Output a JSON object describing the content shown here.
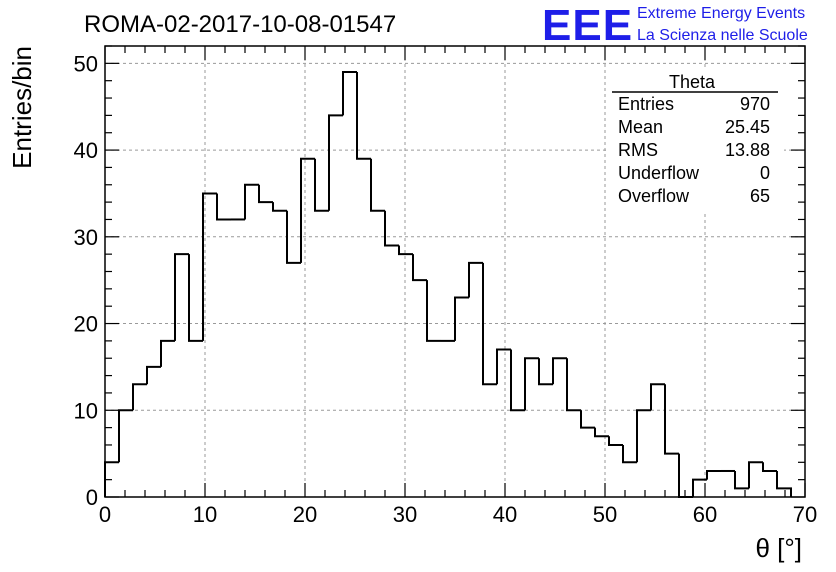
{
  "header": {
    "run_title": "ROMA-02-2017-10-08-01547"
  },
  "logo": {
    "mark": "EEE",
    "line1": "Extreme Energy Events",
    "line2": "La Scienza nelle Scuole",
    "color": "#1e1ee8"
  },
  "stats": {
    "name": "Theta",
    "rows": [
      {
        "label": "Entries",
        "value": "970"
      },
      {
        "label": "Mean",
        "value": "25.45"
      },
      {
        "label": "RMS",
        "value": "13.88"
      },
      {
        "label": "Underflow",
        "value": "0"
      },
      {
        "label": "Overflow",
        "value": "65"
      }
    ]
  },
  "chart_data": {
    "type": "bar",
    "style": "step-histogram",
    "title": "ROMA-02-2017-10-08-01547",
    "xlabel": "θ [°]",
    "ylabel": "Entries/bin",
    "xlim": [
      0,
      70
    ],
    "ylim": [
      0,
      52
    ],
    "grid": true,
    "bin_width": 1.4,
    "x_ticks": [
      "0",
      "10",
      "20",
      "30",
      "40",
      "50",
      "60",
      "70"
    ],
    "y_ticks": [
      "0",
      "10",
      "20",
      "30",
      "40",
      "50"
    ],
    "bin_lows": [
      0,
      1.4,
      2.8,
      4.2,
      5.6,
      7.0,
      8.4,
      9.8,
      11.2,
      12.6,
      14.0,
      15.4,
      16.8,
      18.2,
      19.6,
      21.0,
      22.4,
      23.8,
      25.2,
      26.6,
      28.0,
      29.4,
      30.8,
      32.2,
      33.6,
      35.0,
      36.4,
      37.8,
      39.2,
      40.6,
      42.0,
      43.4,
      44.8,
      46.2,
      47.6,
      49.0,
      50.4,
      51.8,
      53.2,
      54.6,
      56.0,
      57.4,
      58.8,
      60.2,
      61.6,
      63.0,
      64.4,
      65.8,
      67.2
    ],
    "values": [
      4,
      10,
      13,
      15,
      18,
      28,
      18,
      35,
      32,
      32,
      36,
      34,
      33,
      27,
      39,
      33,
      44,
      49,
      39,
      33,
      29,
      28,
      25,
      18,
      18,
      23,
      27,
      13,
      17,
      10,
      16,
      13,
      16,
      10,
      8,
      7,
      6,
      4,
      10,
      13,
      5,
      0,
      2,
      3,
      3,
      1,
      4,
      3,
      1
    ],
    "line_color": "#000000"
  }
}
